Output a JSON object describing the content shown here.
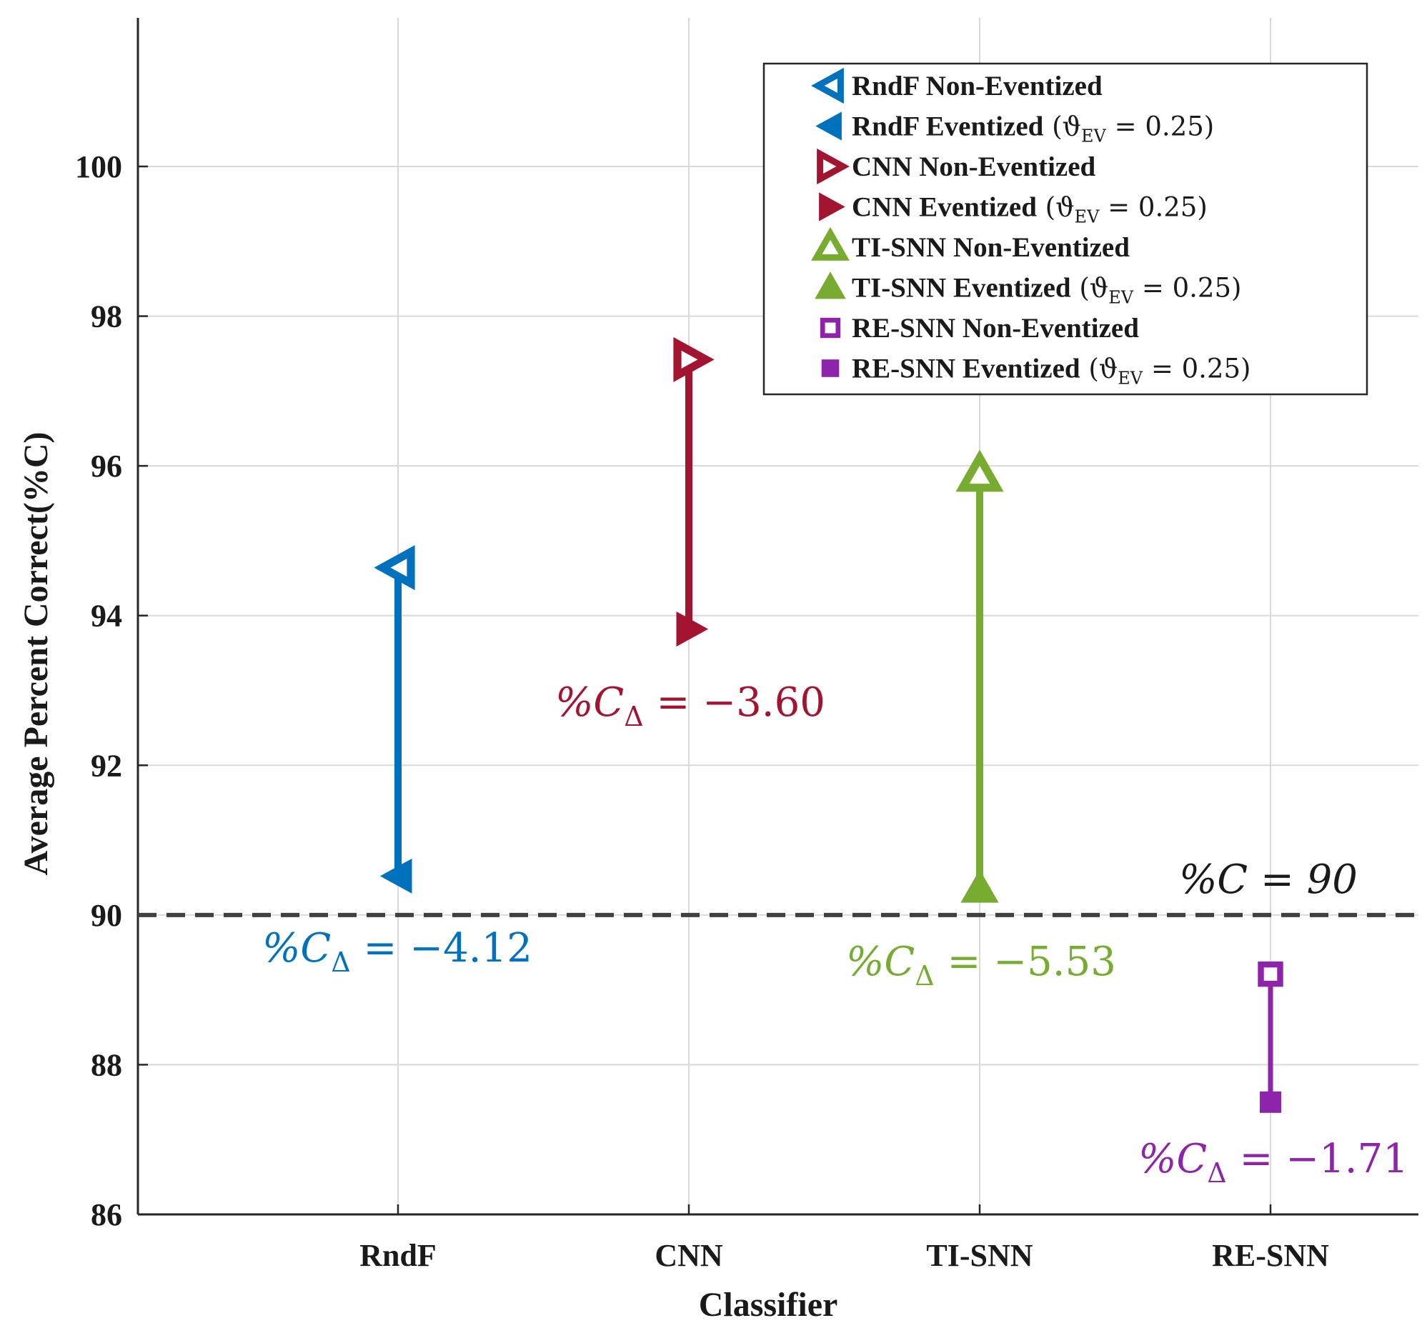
{
  "chart_data": {
    "type": "dumbbell",
    "xlabel": "Classifier",
    "ylabel": "Average Percent Correct(%C)",
    "ylim": [
      86,
      102
    ],
    "yticks": [
      86,
      88,
      90,
      92,
      94,
      96,
      98,
      100
    ],
    "categories": [
      "RndF",
      "CNN",
      "TI-SNN",
      "RE-SNN"
    ],
    "grid": true,
    "series": [
      {
        "name": "RndF",
        "color": "#0072bd",
        "marker": "triangle-left",
        "non_eventized": 94.64,
        "eventized": 90.52,
        "delta_label": "%C",
        "delta_sub": "Δ",
        "delta_value": "= −4.12"
      },
      {
        "name": "CNN",
        "color": "#a2142f",
        "marker": "triangle-right",
        "non_eventized": 97.42,
        "eventized": 93.82,
        "delta_label": "%C",
        "delta_sub": "Δ",
        "delta_value": "= −3.60"
      },
      {
        "name": "TI-SNN",
        "color": "#77ac30",
        "marker": "triangle-up",
        "non_eventized": 95.88,
        "eventized": 90.35,
        "delta_label": "%C",
        "delta_sub": "Δ",
        "delta_value": "= −5.53"
      },
      {
        "name": "RE-SNN",
        "color": "#8e24aa",
        "marker": "square",
        "non_eventized": 89.21,
        "eventized": 87.5,
        "delta_label": "%C",
        "delta_sub": "Δ",
        "delta_value": "= −1.71"
      }
    ],
    "reference_line": {
      "y": 90,
      "label": "%C = 90",
      "style": "dashed",
      "color": "#404040"
    },
    "legend": {
      "position": "top-right",
      "entries": [
        {
          "text": "RndF Non-Eventized",
          "math": "",
          "color": "#0072bd",
          "marker": "triangle-left",
          "filled": false
        },
        {
          "text": "RndF Eventized",
          "math": "(ϑ",
          "math_sub": "EV",
          "math_tail": " = 0.25)",
          "color": "#0072bd",
          "marker": "triangle-left",
          "filled": true
        },
        {
          "text": "CNN Non-Eventized",
          "math": "",
          "color": "#a2142f",
          "marker": "triangle-right",
          "filled": false
        },
        {
          "text": "CNN Eventized",
          "math": "(ϑ",
          "math_sub": "EV",
          "math_tail": " = 0.25)",
          "color": "#a2142f",
          "marker": "triangle-right",
          "filled": true
        },
        {
          "text": "TI-SNN Non-Eventized",
          "math": "",
          "color": "#77ac30",
          "marker": "triangle-up",
          "filled": false
        },
        {
          "text": "TI-SNN Eventized",
          "math": "(ϑ",
          "math_sub": "EV",
          "math_tail": " = 0.25)",
          "color": "#77ac30",
          "marker": "triangle-up",
          "filled": true
        },
        {
          "text": "RE-SNN Non-Eventized",
          "math": "",
          "color": "#8e24aa",
          "marker": "square",
          "filled": false
        },
        {
          "text": "RE-SNN Eventized",
          "math": "(ϑ",
          "math_sub": "EV",
          "math_tail": " = 0.25)",
          "color": "#8e24aa",
          "marker": "square",
          "filled": true
        }
      ]
    }
  }
}
